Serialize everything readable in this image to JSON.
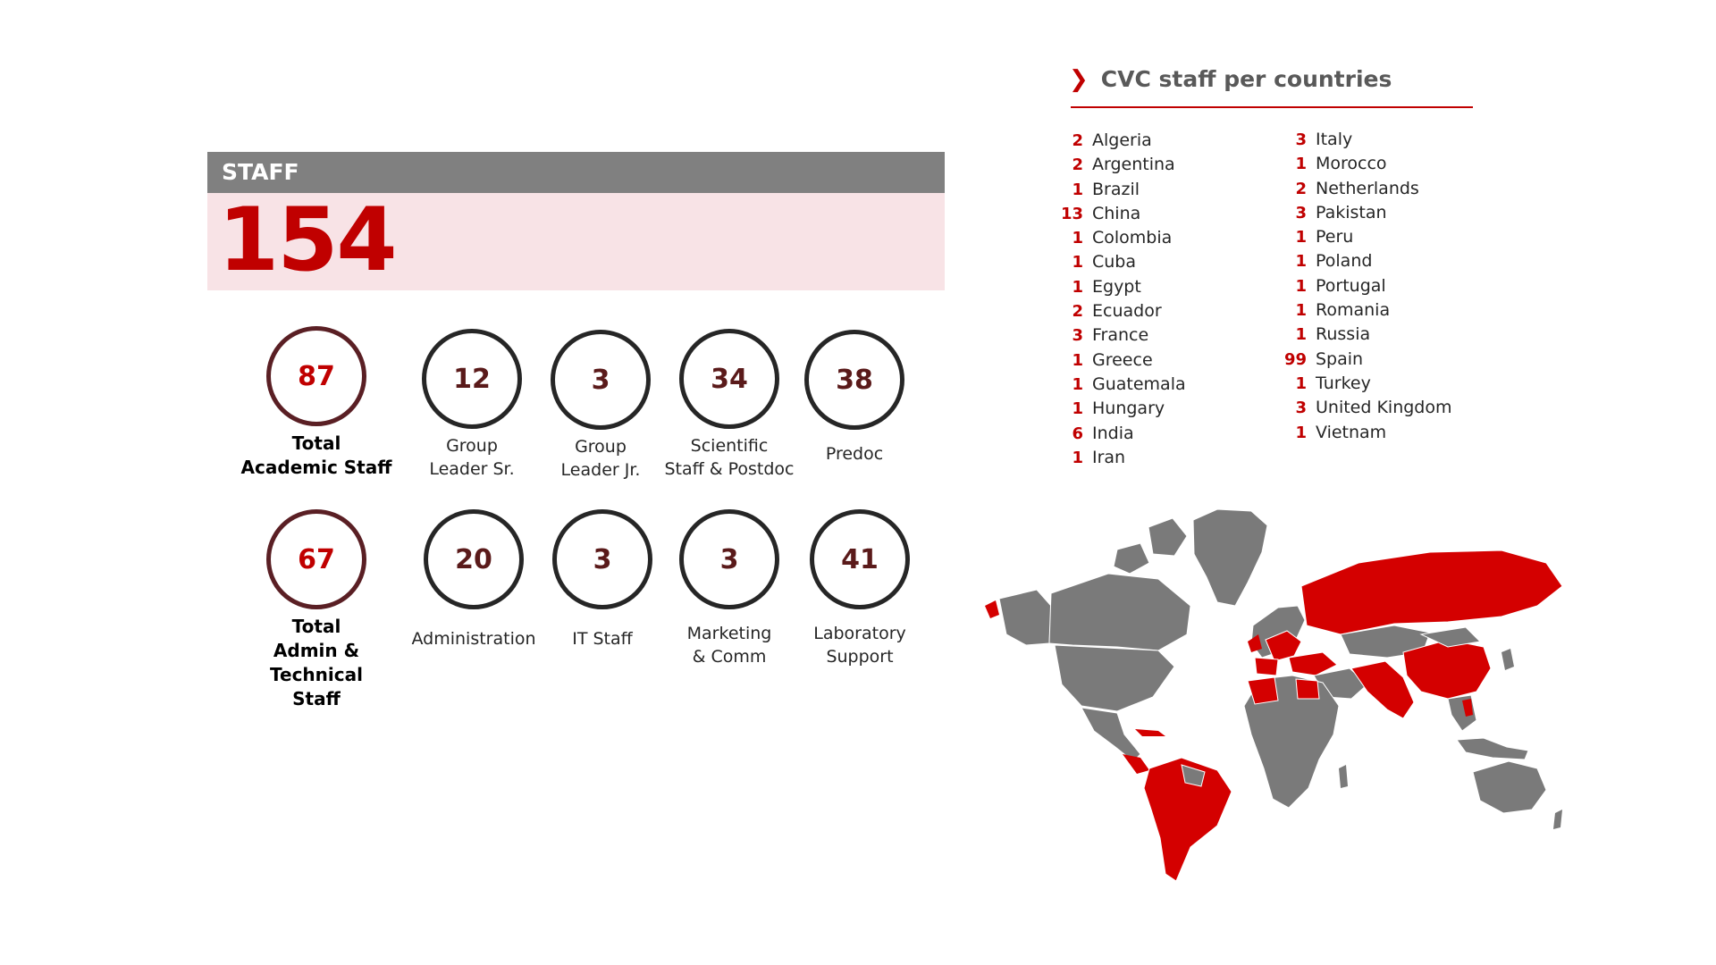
{
  "staff": {
    "header": "STAFF",
    "total": "154"
  },
  "academic": {
    "total": {
      "value": "87",
      "label": "Total\nAcademic Staff"
    },
    "items": [
      {
        "value": "12",
        "label": "Group\nLeader Sr."
      },
      {
        "value": "3",
        "label": "Group\nLeader Jr."
      },
      {
        "value": "34",
        "label": "Scientific\nStaff & Postdoc"
      },
      {
        "value": "38",
        "label": "Predoc"
      }
    ]
  },
  "admin": {
    "total": {
      "value": "67",
      "label": "Total\nAdmin & Technical\nStaff"
    },
    "items": [
      {
        "value": "20",
        "label": "Administration"
      },
      {
        "value": "3",
        "label": "IT Staff"
      },
      {
        "value": "3",
        "label": "Marketing\n& Comm"
      },
      {
        "value": "41",
        "label": "Laboratory\nSupport"
      }
    ]
  },
  "countries": {
    "title": "CVC staff per countries",
    "left": [
      {
        "count": "2",
        "name": "Algeria"
      },
      {
        "count": "2",
        "name": "Argentina"
      },
      {
        "count": "1",
        "name": "Brazil"
      },
      {
        "count": "13",
        "name": "China"
      },
      {
        "count": "1",
        "name": "Colombia"
      },
      {
        "count": "1",
        "name": "Cuba"
      },
      {
        "count": "1",
        "name": "Egypt"
      },
      {
        "count": "2",
        "name": "Ecuador"
      },
      {
        "count": "3",
        "name": "France"
      },
      {
        "count": "1",
        "name": "Greece"
      },
      {
        "count": "1",
        "name": "Guatemala"
      },
      {
        "count": "1",
        "name": "Hungary"
      },
      {
        "count": "6",
        "name": "India"
      },
      {
        "count": "1",
        "name": "Iran"
      }
    ],
    "right": [
      {
        "count": "3",
        "name": "Italy"
      },
      {
        "count": "1",
        "name": "Morocco"
      },
      {
        "count": "2",
        "name": "Netherlands"
      },
      {
        "count": "3",
        "name": "Pakistan"
      },
      {
        "count": "1",
        "name": "Peru"
      },
      {
        "count": "1",
        "name": "Poland"
      },
      {
        "count": "1",
        "name": "Portugal"
      },
      {
        "count": "1",
        "name": "Romania"
      },
      {
        "count": "1",
        "name": "Russia"
      },
      {
        "count": "99",
        "name": "Spain"
      },
      {
        "count": "1",
        "name": "Turkey"
      },
      {
        "count": "3",
        "name": "United Kingdom"
      },
      {
        "count": "1",
        "name": "Vietnam"
      }
    ]
  },
  "colors": {
    "accent": "#c00000",
    "header_gray": "#808080",
    "panel_pink": "#f8e3e6",
    "map_gray": "#7a7a7a",
    "map_highlight": "#d40000"
  }
}
